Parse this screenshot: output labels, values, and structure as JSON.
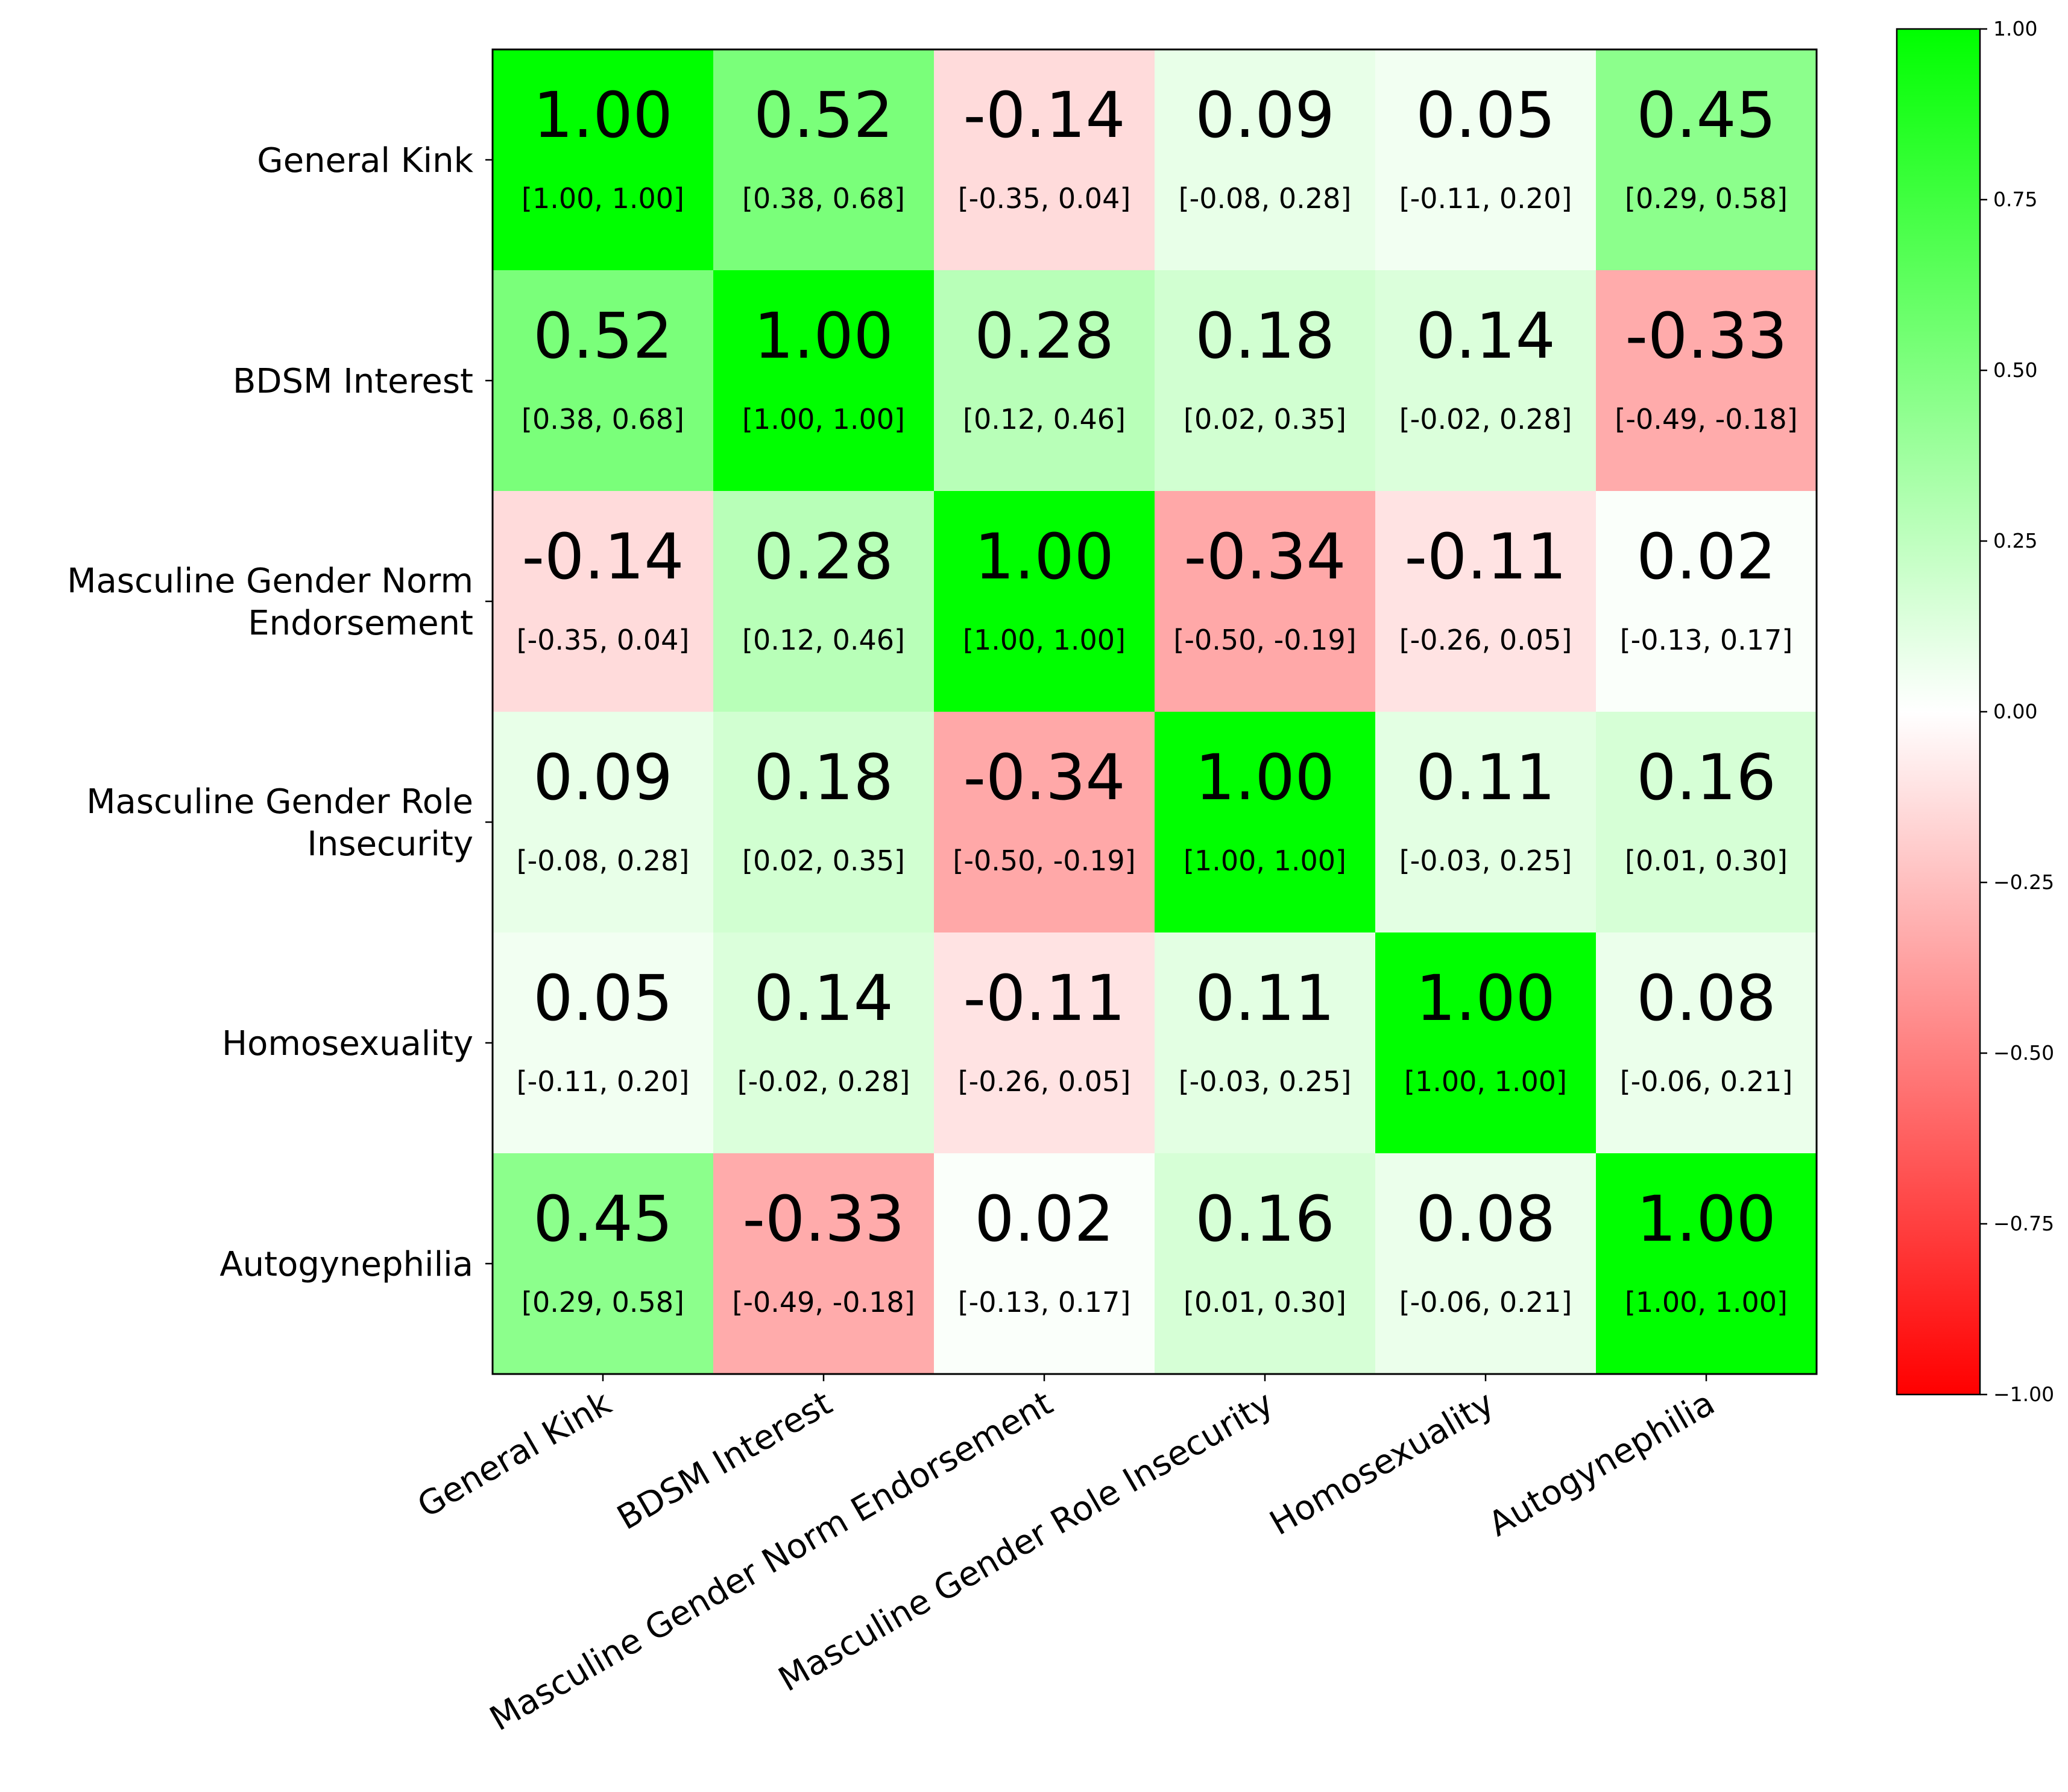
{
  "chart_data": {
    "type": "heatmap",
    "variables": [
      "General Kink",
      "BDSM Interest",
      "Masculine Gender Norm Endorsement",
      "Masculine Gender Role Insecurity",
      "Homosexuality",
      "Autogynephilia"
    ],
    "row_labels": [
      [
        "General Kink"
      ],
      [
        "BDSM Interest"
      ],
      [
        "Masculine Gender Norm",
        "Endorsement"
      ],
      [
        "Masculine Gender Role",
        "Insecurity"
      ],
      [
        "Homosexuality"
      ],
      [
        "Autogynephilia"
      ]
    ],
    "values": [
      [
        1.0,
        0.52,
        -0.14,
        0.09,
        0.05,
        0.45
      ],
      [
        0.52,
        1.0,
        0.28,
        0.18,
        0.14,
        -0.33
      ],
      [
        -0.14,
        0.28,
        1.0,
        -0.34,
        -0.11,
        0.02
      ],
      [
        0.09,
        0.18,
        -0.34,
        1.0,
        0.11,
        0.16
      ],
      [
        0.05,
        0.14,
        -0.11,
        0.11,
        1.0,
        0.08
      ],
      [
        0.45,
        -0.33,
        0.02,
        0.16,
        0.08,
        1.0
      ]
    ],
    "value_labels": [
      [
        "1.00",
        "0.52",
        "-0.14",
        "0.09",
        "0.05",
        "0.45"
      ],
      [
        "0.52",
        "1.00",
        "0.28",
        "0.18",
        "0.14",
        "-0.33"
      ],
      [
        "-0.14",
        "0.28",
        "1.00",
        "-0.34",
        "-0.11",
        "0.02"
      ],
      [
        "0.09",
        "0.18",
        "-0.34",
        "1.00",
        "0.11",
        "0.16"
      ],
      [
        "0.05",
        "0.14",
        "-0.11",
        "0.11",
        "1.00",
        "0.08"
      ],
      [
        "0.45",
        "-0.33",
        "0.02",
        "0.16",
        "0.08",
        "1.00"
      ]
    ],
    "ci_labels": [
      [
        "[1.00, 1.00]",
        "[0.38, 0.68]",
        "[-0.35, 0.04]",
        "[-0.08, 0.28]",
        "[-0.11, 0.20]",
        "[0.29, 0.58]"
      ],
      [
        "[0.38, 0.68]",
        "[1.00, 1.00]",
        "[0.12, 0.46]",
        "[0.02, 0.35]",
        "[-0.02, 0.28]",
        "[-0.49, -0.18]"
      ],
      [
        "[-0.35, 0.04]",
        "[0.12, 0.46]",
        "[1.00, 1.00]",
        "[-0.50, -0.19]",
        "[-0.26, 0.05]",
        "[-0.13, 0.17]"
      ],
      [
        "[-0.08, 0.28]",
        "[0.02, 0.35]",
        "[-0.50, -0.19]",
        "[1.00, 1.00]",
        "[-0.03, 0.25]",
        "[0.01, 0.30]"
      ],
      [
        "[-0.11, 0.20]",
        "[-0.02, 0.28]",
        "[-0.26, 0.05]",
        "[-0.03, 0.25]",
        "[1.00, 1.00]",
        "[-0.06, 0.21]"
      ],
      [
        "[0.29, 0.58]",
        "[-0.49, -0.18]",
        "[-0.13, 0.17]",
        "[0.01, 0.30]",
        "[-0.06, 0.21]",
        "[1.00, 1.00]"
      ]
    ],
    "colorbar": {
      "range": [
        -1.0,
        1.0
      ],
      "ticks": [
        1.0,
        0.75,
        0.5,
        0.25,
        0.0,
        -0.25,
        -0.5,
        -0.75,
        -1.0
      ],
      "tick_labels": [
        "1.00",
        "0.75",
        "0.50",
        "0.25",
        "0.00",
        "−0.25",
        "−0.50",
        "−0.75",
        "−1.00"
      ],
      "colors": {
        "low": "#ff0000",
        "mid": "#ffffff",
        "high": "#00ff00"
      },
      "placement": "right"
    },
    "x_tick_rotation_deg": 30,
    "grid": false
  }
}
